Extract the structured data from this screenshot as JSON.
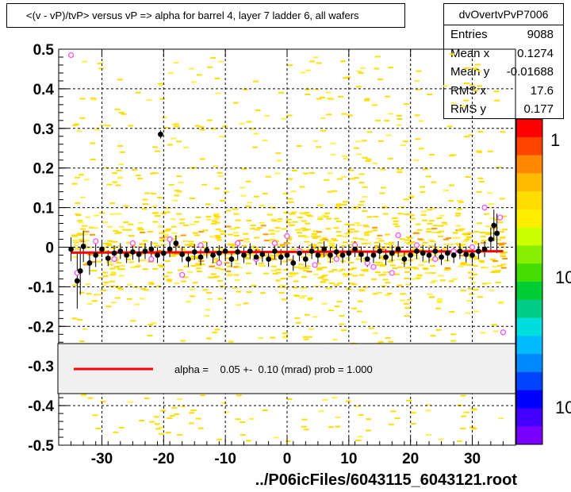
{
  "title": "<(v - vP)/tvP> versus   vP => alpha for barrel 4, layer 7 ladder 6, all wafers",
  "stats": {
    "name": "dvOvertvPvP7006",
    "rows": [
      {
        "label": "Entries",
        "value": "9088"
      },
      {
        "label": "Mean x",
        "value": "0.1274"
      },
      {
        "label": "Mean y",
        "value": "-0.01688"
      },
      {
        "label": "RMS x",
        "value": "17.6"
      },
      {
        "label": "RMS y",
        "value": "0.177"
      }
    ]
  },
  "legend_text": "alpha =    0.05 +-  0.10 (mrad) prob = 1.000",
  "file_label": "../P06icFiles/6043115_6043121.root",
  "colors": {
    "fit": "#ff0000",
    "points": "#000000",
    "open_points": "#ff44ff",
    "background_cells": "#ffdd00"
  },
  "chart_data": {
    "type": "scatter",
    "xlim": [
      -37,
      37
    ],
    "ylim": [
      -0.5,
      0.5
    ],
    "x_ticks": [
      "-30",
      "-20",
      "-10",
      "0",
      "10",
      "20",
      "30"
    ],
    "y_ticks": [
      "0.5",
      "0.4",
      "0.3",
      "0.2",
      "0.1",
      "0",
      "-0.1",
      "-0.2",
      "-0.3",
      "-0.4",
      "-0.5"
    ],
    "colorbar_ticks": [
      "1",
      "10",
      "10"
    ],
    "grid": true,
    "fit": {
      "slope": 5e-05,
      "intercept": -0.012,
      "x_range": [
        -35,
        35
      ]
    },
    "points": [
      [
        -35.0,
        -0.005,
        0.03
      ],
      [
        -34.0,
        -0.085,
        0.07
      ],
      [
        -33.5,
        -0.06,
        0.06
      ],
      [
        -33.0,
        0.002,
        0.04
      ],
      [
        -32.0,
        -0.04,
        0.03
      ],
      [
        -31.0,
        -0.02,
        0.03
      ],
      [
        -30.0,
        -0.005,
        0.02
      ],
      [
        -29.0,
        -0.028,
        0.02
      ],
      [
        -28.0,
        -0.015,
        0.02
      ],
      [
        -27.0,
        -0.01,
        0.02
      ],
      [
        -26.0,
        -0.02,
        0.02
      ],
      [
        -25.0,
        -0.012,
        0.02
      ],
      [
        -24.0,
        -0.018,
        0.02
      ],
      [
        -23.0,
        -0.01,
        0.02
      ],
      [
        -22.0,
        -0.005,
        0.02
      ],
      [
        -21.0,
        -0.02,
        0.02
      ],
      [
        -20.5,
        0.285,
        0.01
      ],
      [
        -20.0,
        -0.015,
        0.02
      ],
      [
        -19.0,
        -0.005,
        0.02
      ],
      [
        -18.0,
        0.01,
        0.02
      ],
      [
        -17.0,
        -0.018,
        0.02
      ],
      [
        -16.0,
        -0.03,
        0.02
      ],
      [
        -15.0,
        -0.012,
        0.02
      ],
      [
        -14.0,
        -0.025,
        0.02
      ],
      [
        -13.0,
        -0.008,
        0.02
      ],
      [
        -12.0,
        -0.02,
        0.02
      ],
      [
        -11.0,
        -0.015,
        0.02
      ],
      [
        -10.0,
        -0.01,
        0.02
      ],
      [
        -9.0,
        -0.03,
        0.02
      ],
      [
        -8.0,
        -0.012,
        0.02
      ],
      [
        -7.0,
        -0.02,
        0.02
      ],
      [
        -6.0,
        -0.01,
        0.02
      ],
      [
        -5.0,
        -0.025,
        0.02
      ],
      [
        -4.0,
        -0.018,
        0.02
      ],
      [
        -3.0,
        -0.03,
        0.02
      ],
      [
        -2.0,
        -0.01,
        0.02
      ],
      [
        -1.0,
        -0.025,
        0.02
      ],
      [
        0.0,
        -0.02,
        0.02
      ],
      [
        1.0,
        -0.04,
        0.02
      ],
      [
        2.0,
        -0.015,
        0.02
      ],
      [
        3.0,
        -0.03,
        0.02
      ],
      [
        4.0,
        -0.01,
        0.02
      ],
      [
        5.0,
        -0.02,
        0.02
      ],
      [
        6.0,
        -0.005,
        0.02
      ],
      [
        7.0,
        -0.02,
        0.02
      ],
      [
        8.0,
        -0.012,
        0.02
      ],
      [
        9.0,
        -0.02,
        0.02
      ],
      [
        10.0,
        -0.015,
        0.02
      ],
      [
        11.0,
        -0.005,
        0.02
      ],
      [
        12.0,
        -0.018,
        0.02
      ],
      [
        13.0,
        -0.03,
        0.02
      ],
      [
        14.0,
        -0.02,
        0.02
      ],
      [
        15.0,
        -0.01,
        0.02
      ],
      [
        16.0,
        -0.025,
        0.02
      ],
      [
        17.0,
        -0.015,
        0.02
      ],
      [
        18.0,
        -0.005,
        0.02
      ],
      [
        19.0,
        -0.03,
        0.02
      ],
      [
        20.0,
        -0.02,
        0.02
      ],
      [
        21.0,
        -0.01,
        0.02
      ],
      [
        22.0,
        -0.015,
        0.02
      ],
      [
        23.0,
        -0.02,
        0.02
      ],
      [
        24.0,
        -0.01,
        0.02
      ],
      [
        25.0,
        -0.025,
        0.02
      ],
      [
        26.0,
        -0.015,
        0.02
      ],
      [
        27.0,
        -0.02,
        0.02
      ],
      [
        28.0,
        -0.01,
        0.02
      ],
      [
        29.0,
        -0.018,
        0.02
      ],
      [
        30.0,
        -0.02,
        0.02
      ],
      [
        31.0,
        -0.01,
        0.02
      ],
      [
        32.0,
        -0.005,
        0.02
      ],
      [
        33.0,
        0.02,
        0.03
      ],
      [
        33.5,
        0.055,
        0.04
      ],
      [
        34.0,
        0.035,
        0.05
      ]
    ],
    "open_points": [
      [
        -35.0,
        0.485
      ],
      [
        -34.0,
        -0.065
      ],
      [
        -31.0,
        0.015
      ],
      [
        -28.0,
        -0.03
      ],
      [
        -25.0,
        0.01
      ],
      [
        -22.0,
        -0.03
      ],
      [
        -19.0,
        0.02
      ],
      [
        -17.0,
        -0.07
      ],
      [
        -14.0,
        0.005
      ],
      [
        -11.0,
        -0.04
      ],
      [
        -8.0,
        0.01
      ],
      [
        -5.0,
        -0.03
      ],
      [
        -2.0,
        0.01
      ],
      [
        0.0,
        0.028
      ],
      [
        2.0,
        -0.01
      ],
      [
        4.5,
        -0.045
      ],
      [
        8.0,
        -0.03
      ],
      [
        11.0,
        0.005
      ],
      [
        13.0,
        -0.04
      ],
      [
        14.0,
        -0.05
      ],
      [
        17.0,
        -0.065
      ],
      [
        18.0,
        0.03
      ],
      [
        21.0,
        0.005
      ],
      [
        24.0,
        -0.03
      ],
      [
        27.0,
        -0.01
      ],
      [
        30.0,
        0.0
      ],
      [
        32.0,
        0.1
      ],
      [
        34.5,
        0.075
      ],
      [
        35.0,
        -0.215
      ]
    ]
  }
}
